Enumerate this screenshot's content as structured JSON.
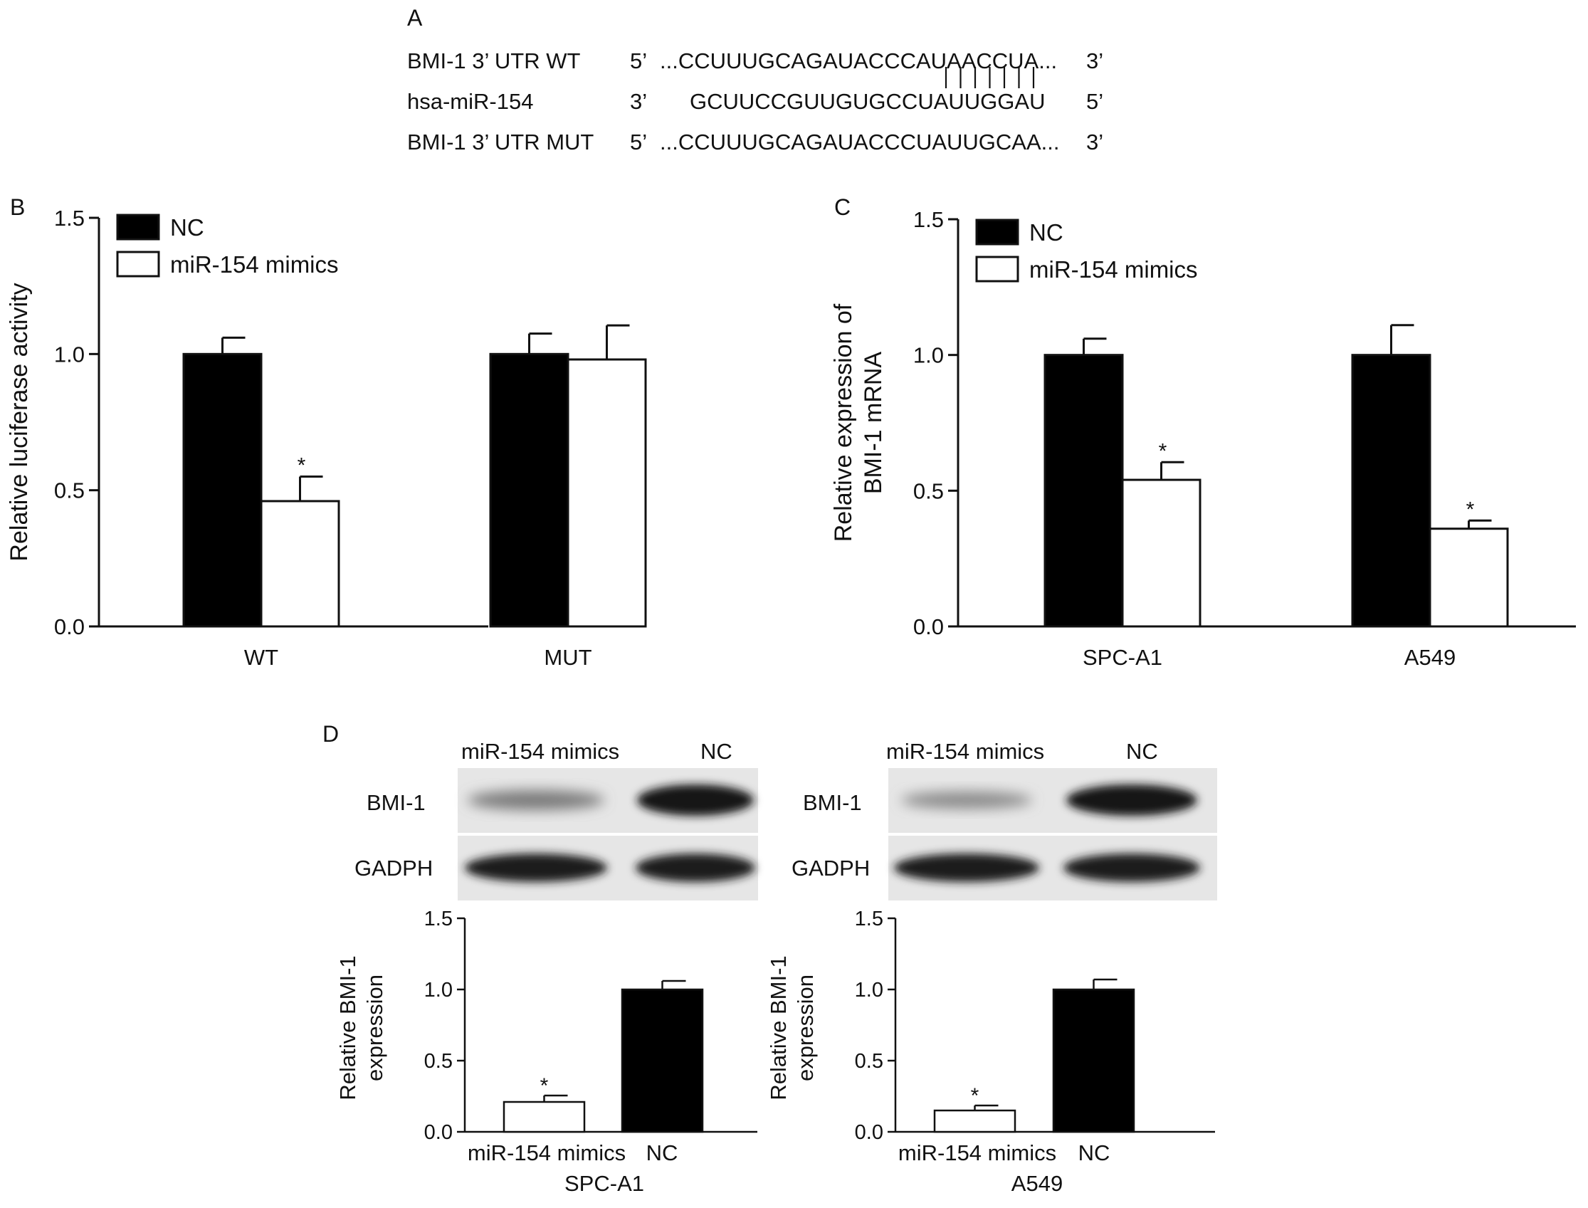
{
  "panel_a": {
    "letter": "A",
    "rows": [
      {
        "name": "BMI-1 3’ UTR WT",
        "end5": "5’",
        "seq": "...CCUUUGCAGAUACCCAUAACCUA...",
        "end3": "3’"
      },
      {
        "name": "hsa-miR-154",
        "end5": "3’",
        "seq": "GCUUCCGUUGUGCCUAUUGGAU",
        "end3": "5’"
      },
      {
        "name": "BMI-1 3’ UTR MUT",
        "end5": "5’",
        "seq": "...CCUUUGCAGAUACCCUAUUGCAA...",
        "end3": "3’"
      }
    ],
    "pairing_marks": 7
  },
  "panel_d": {
    "letter": "D",
    "blots": [
      {
        "id": "spca1",
        "lanes": [
          "miR-154 mimics",
          "NC"
        ],
        "proteins": [
          "BMI-1",
          "GADPH"
        ]
      },
      {
        "id": "a549",
        "lanes": [
          "miR-154 mimics",
          "NC"
        ],
        "proteins": [
          "BMI-1",
          "GADPH"
        ]
      }
    ]
  },
  "chart_data": [
    {
      "id": "B",
      "letter": "B",
      "type": "bar",
      "categories": [
        "WT",
        "MUT"
      ],
      "series": [
        {
          "name": "NC",
          "color": "#000000",
          "values": [
            1.0,
            1.0
          ],
          "errors": [
            0.06,
            0.075
          ]
        },
        {
          "name": "miR-154 mimics",
          "color": "#ffffff",
          "values": [
            0.46,
            0.98
          ],
          "errors": [
            0.09,
            0.125
          ]
        }
      ],
      "significance": [
        [
          "",
          "*"
        ],
        [
          "",
          ""
        ]
      ],
      "ylabel": "Relative luciferase activity",
      "xlabel": "",
      "ylim": [
        0,
        1.5
      ],
      "yticks": [
        "0.0",
        "0.5",
        "1.0",
        "1.5"
      ],
      "legend": "top-left"
    },
    {
      "id": "C",
      "letter": "C",
      "type": "bar",
      "categories": [
        "SPC-A1",
        "A549"
      ],
      "series": [
        {
          "name": "NC",
          "color": "#000000",
          "values": [
            1.0,
            1.0
          ],
          "errors": [
            0.06,
            0.11
          ]
        },
        {
          "name": "miR-154 mimics",
          "color": "#ffffff",
          "values": [
            0.54,
            0.36
          ],
          "errors": [
            0.065,
            0.03
          ]
        }
      ],
      "significance": [
        [
          "",
          "*"
        ],
        [
          "",
          "*"
        ]
      ],
      "ylabel": [
        "Relative expression of",
        "BMI-1 mRNA"
      ],
      "xlabel": "",
      "ylim": [
        0,
        1.5
      ],
      "yticks": [
        "0.0",
        "0.5",
        "1.0",
        "1.5"
      ],
      "legend": "top-left"
    },
    {
      "id": "D1",
      "type": "bar",
      "categories": [
        "miR-154 mimics",
        "NC"
      ],
      "values": [
        0.21,
        1.0
      ],
      "errors": [
        0.045,
        0.06
      ],
      "colors": [
        "#ffffff",
        "#000000"
      ],
      "significance": [
        "*",
        ""
      ],
      "ylabel": [
        "Relative BMI-1",
        "expression"
      ],
      "xlabel": "SPC-A1",
      "ylim": [
        0,
        1.5
      ],
      "yticks": [
        "0.0",
        "0.5",
        "1.0",
        "1.5"
      ]
    },
    {
      "id": "D2",
      "type": "bar",
      "categories": [
        "miR-154 mimics",
        "NC"
      ],
      "values": [
        0.15,
        1.0
      ],
      "errors": [
        0.035,
        0.07
      ],
      "colors": [
        "#ffffff",
        "#000000"
      ],
      "significance": [
        "*",
        ""
      ],
      "ylabel": [
        "Relative BMI-1",
        "expression"
      ],
      "xlabel": "A549",
      "ylim": [
        0,
        1.5
      ],
      "yticks": [
        "0.0",
        "0.5",
        "1.0",
        "1.5"
      ]
    }
  ]
}
